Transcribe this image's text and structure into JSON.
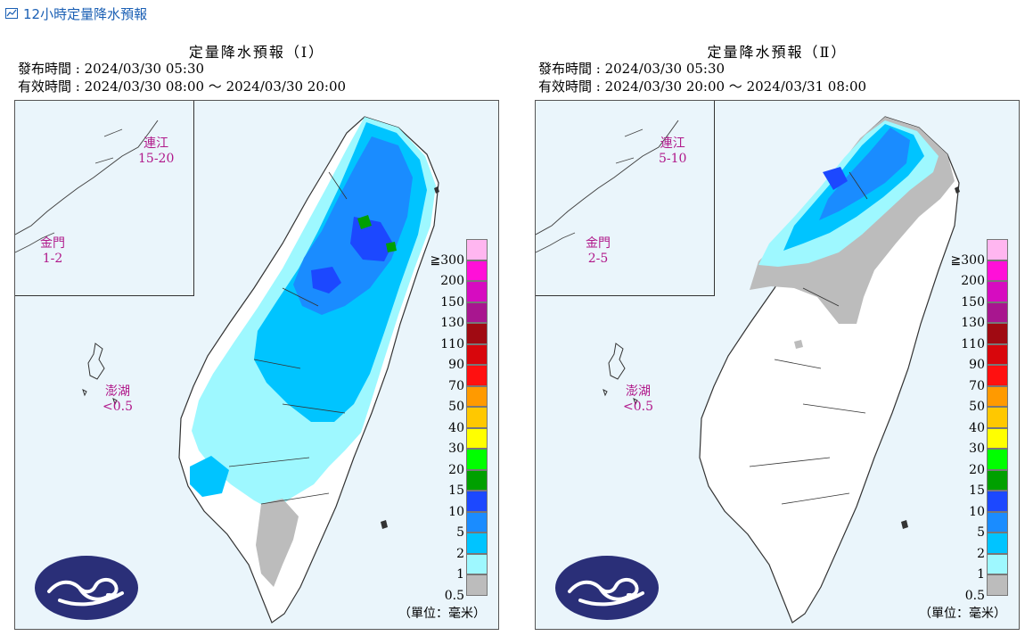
{
  "page": {
    "title": "12小時定量降水預報"
  },
  "legend": {
    "levels": [
      {
        "label": "≧300",
        "color": "#ffb6f0"
      },
      {
        "label": "200",
        "color": "#ff10d8"
      },
      {
        "label": "150",
        "color": "#d60cc0"
      },
      {
        "label": "130",
        "color": "#a8168f"
      },
      {
        "label": "110",
        "color": "#a00a12"
      },
      {
        "label": "90",
        "color": "#d8060c"
      },
      {
        "label": "70",
        "color": "#ff1010"
      },
      {
        "label": "50",
        "color": "#ff9a00"
      },
      {
        "label": "40",
        "color": "#ffc800"
      },
      {
        "label": "30",
        "color": "#ffff00"
      },
      {
        "label": "20",
        "color": "#00ff00"
      },
      {
        "label": "15",
        "color": "#00a000"
      },
      {
        "label": "10",
        "color": "#1c48ff"
      },
      {
        "label": "5",
        "color": "#1a8cff"
      },
      {
        "label": "2",
        "color": "#00c4ff"
      },
      {
        "label": "1",
        "color": "#9ef8ff"
      },
      {
        "label": "0.5",
        "color": "#bcbcbc"
      }
    ],
    "unit": "（單位：毫米）"
  },
  "panels": [
    {
      "title": "定量降水預報（Ⅰ）",
      "issue_line": "發布時間 : 2024/03/30 05:30",
      "valid_line": "有效時間 : 2024/03/30 08:00 ～ 2024/03/30 20:00",
      "islands": [
        {
          "name": "連江",
          "value": "15-20"
        },
        {
          "name": "金門",
          "value": "1-2"
        },
        {
          "name": "澎湖",
          "value": "<0.5"
        }
      ]
    },
    {
      "title": "定量降水預報（Ⅱ）",
      "issue_line": "發布時間 : 2024/03/30 05:30",
      "valid_line": "有效時間 : 2024/03/30 20:00 ～ 2024/03/31 08:00",
      "islands": [
        {
          "name": "連江",
          "value": "5-10"
        },
        {
          "name": "金門",
          "value": "2-5"
        },
        {
          "name": "澎湖",
          "value": "<0.5"
        }
      ]
    }
  ]
}
